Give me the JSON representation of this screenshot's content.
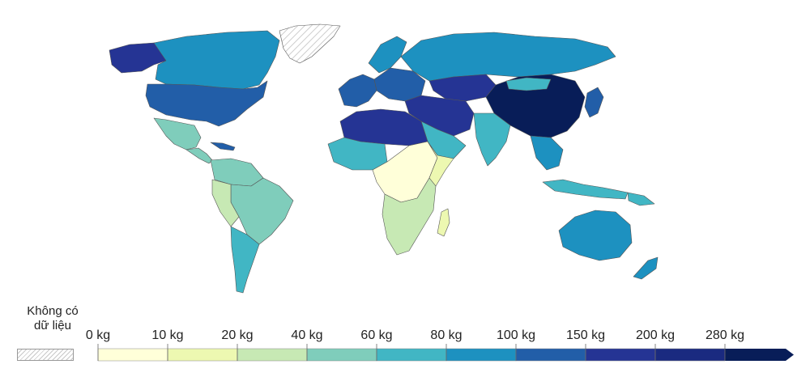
{
  "legend": {
    "no_data_label_line1": "Không có",
    "no_data_label_line2": "dữ liệu",
    "bins": [
      {
        "label": "0 kg",
        "color": "#ffffd9"
      },
      {
        "label": "10 kg",
        "color": "#edf8b1"
      },
      {
        "label": "20 kg",
        "color": "#c7e9b4"
      },
      {
        "label": "40 kg",
        "color": "#7fcdbb"
      },
      {
        "label": "60 kg",
        "color": "#41b6c4"
      },
      {
        "label": "80 kg",
        "color": "#1d91c0"
      },
      {
        "label": "100 kg",
        "color": "#225ea8"
      },
      {
        "label": "150 kg",
        "color": "#253494"
      },
      {
        "label": "200 kg",
        "color": "#1a2a80"
      },
      {
        "label": "280 kg",
        "color": "#081d58"
      }
    ]
  },
  "map": {
    "ocean_color": "#ffffff",
    "nodata_color": "#dddddd"
  }
}
